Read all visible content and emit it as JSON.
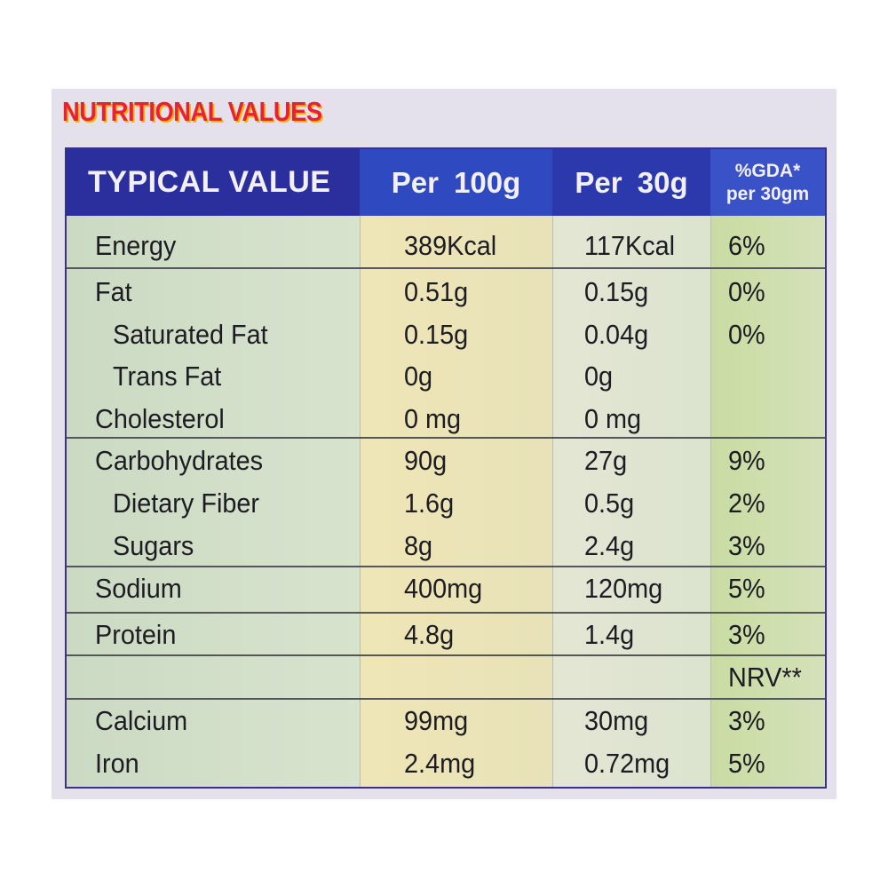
{
  "title": "NUTRITIONAL VALUES",
  "table": {
    "headers": {
      "label": "TYPICAL VALUE",
      "per100": "Per 100g",
      "per30": "Per 30g",
      "gda_line1": "%GDA*",
      "gda_line2": "per 30gm"
    },
    "rows": [
      {
        "label": "Energy",
        "per100": "389Kcal",
        "per30": "117Kcal",
        "gda": "6%"
      },
      {
        "label": "Fat",
        "per100": "0.51g",
        "per30": "0.15g",
        "gda": "0%"
      },
      {
        "label": "Saturated Fat",
        "per100": "0.15g",
        "per30": "0.04g",
        "gda": "0%"
      },
      {
        "label": "Trans Fat",
        "per100": "0g",
        "per30": "0g",
        "gda": ""
      },
      {
        "label": "Cholesterol",
        "per100": "0 mg",
        "per30": "0 mg",
        "gda": ""
      },
      {
        "label": "Carbohydrates",
        "per100": "90g",
        "per30": "27g",
        "gda": "9%"
      },
      {
        "label": "Dietary Fiber",
        "per100": "1.6g",
        "per30": "0.5g",
        "gda": "2%"
      },
      {
        "label": "Sugars",
        "per100": "8g",
        "per30": "2.4g",
        "gda": "3%"
      },
      {
        "label": "Sodium",
        "per100": "400mg",
        "per30": "120mg",
        "gda": "5%"
      },
      {
        "label": "Protein",
        "per100": "4.8g",
        "per30": "1.4g",
        "gda": "3%"
      },
      {
        "label": "",
        "per100": "",
        "per30": "",
        "gda": "NRV**"
      },
      {
        "label": "Calcium",
        "per100": "99mg",
        "per30": "30mg",
        "gda": "3%"
      },
      {
        "label": "Iron",
        "per100": "2.4mg",
        "per30": "0.72mg",
        "gda": "5%"
      }
    ]
  },
  "colors": {
    "title_red": "#e8203a",
    "title_shadow": "#f5b400",
    "header_blue": "#2b35a8",
    "label_green": "#cbdac3",
    "per100_yellow": "#efe6b6",
    "gda_green": "#c9dca2"
  }
}
